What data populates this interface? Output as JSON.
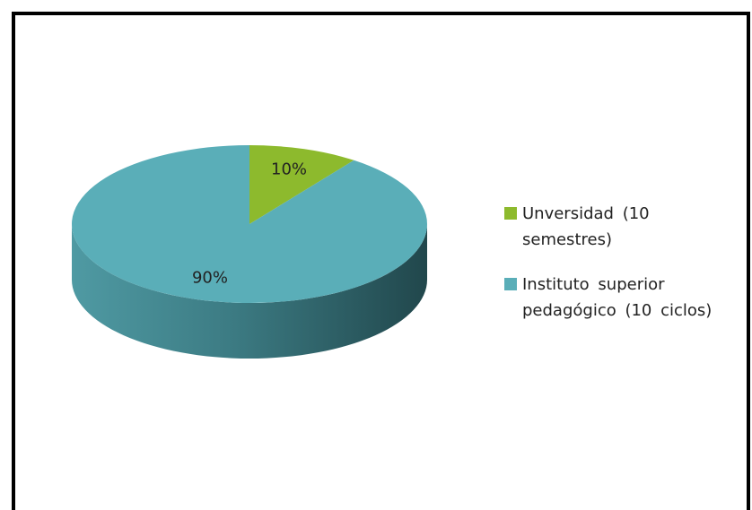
{
  "chart_data": {
    "type": "pie3d",
    "categories": [
      "Unversidad (10 semestres)",
      "Instituto superior pedagógico (10 ciclos)"
    ],
    "values": [
      10,
      90
    ],
    "value_labels": [
      "10%",
      "90%"
    ],
    "colors": [
      "#8dba2d",
      "#5aaeb8"
    ],
    "legend": "right"
  }
}
